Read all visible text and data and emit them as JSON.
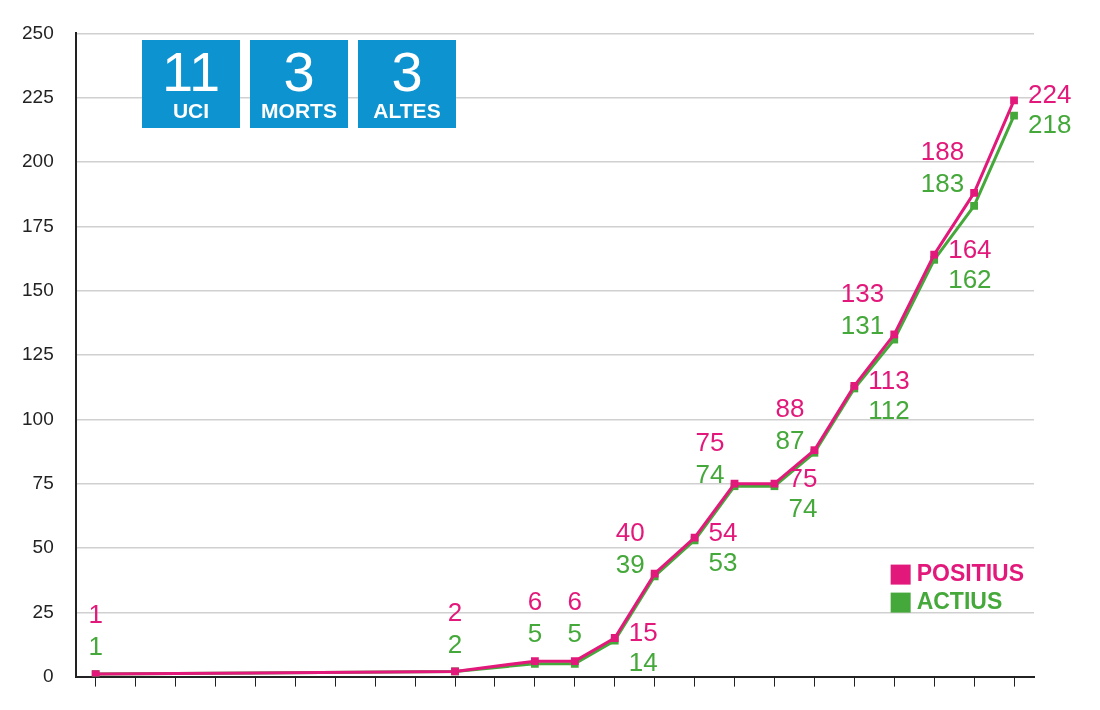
{
  "chart_data": {
    "type": "line",
    "categories": [
      null,
      null,
      null,
      null,
      null,
      null,
      null,
      null,
      null,
      null,
      null,
      null,
      null,
      null,
      null,
      null,
      null,
      null,
      null,
      null,
      null,
      null,
      null,
      null
    ],
    "series": [
      {
        "name": "POSITIUS",
        "color": "#e2197a",
        "values": [
          1,
          null,
          null,
          null,
          null,
          null,
          null,
          null,
          null,
          2,
          null,
          6,
          6,
          15,
          40,
          54,
          75,
          75,
          88,
          113,
          133,
          164,
          188,
          224
        ]
      },
      {
        "name": "ACTIUS",
        "color": "#45a83a",
        "values": [
          1,
          null,
          null,
          null,
          null,
          null,
          null,
          null,
          null,
          2,
          null,
          5,
          5,
          14,
          39,
          53,
          74,
          74,
          87,
          112,
          131,
          162,
          183,
          218
        ]
      }
    ],
    "ylim": [
      0,
      250
    ],
    "yticks": [
      0,
      25,
      50,
      75,
      100,
      125,
      150,
      175,
      200,
      225,
      250
    ],
    "grid": "y",
    "legend": "bottom right",
    "marker": "square",
    "line_style": "solid",
    "data_labels": true,
    "tick_labels": "y",
    "annotations": [
      "11 UCI",
      "3 MORTS",
      "3 ALTES"
    ]
  }
}
